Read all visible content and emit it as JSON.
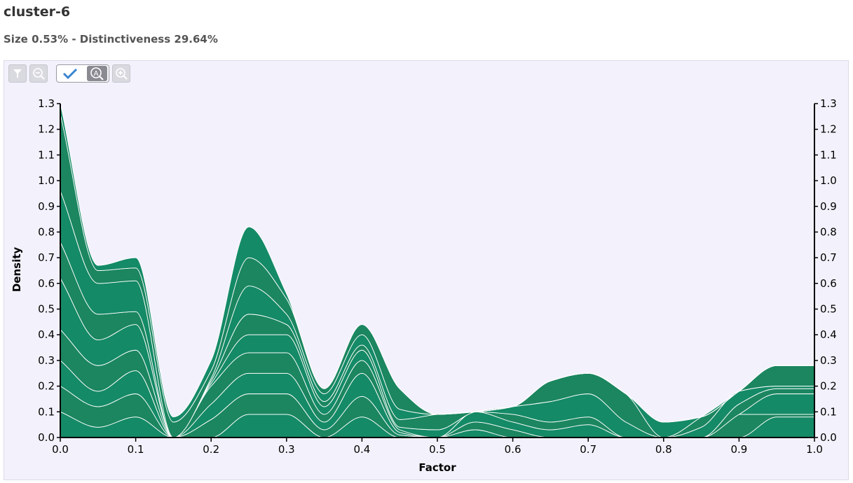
{
  "header": {
    "title": "cluster-6",
    "subtitle": "Size 0.53% - Distinctiveness 29.64%"
  },
  "toolbar": {
    "buttons": [
      "filter-icon",
      "zoom-out-icon",
      "check-icon",
      "auto-zoom-icon",
      "zoom-in-icon"
    ]
  },
  "colors": {
    "fill_dark": "#1b8660",
    "fill_light": "#148a66",
    "stroke": "#ffffff",
    "panel_bg": "#f3f2fc"
  },
  "chart_data": {
    "type": "area",
    "stacked": true,
    "xlabel": "Factor",
    "ylabel": "Density",
    "xlim": [
      0,
      1
    ],
    "ylim": [
      0,
      1.3
    ],
    "x_ticks": [
      "0.0",
      "0.1",
      "0.2",
      "0.3",
      "0.4",
      "0.5",
      "0.6",
      "0.7",
      "0.8",
      "0.9",
      "1.0"
    ],
    "y_ticks": [
      "0.0",
      "0.1",
      "0.2",
      "0.3",
      "0.4",
      "0.5",
      "0.6",
      "0.7",
      "0.8",
      "0.9",
      "1.0",
      "1.1",
      "1.2",
      "1.3"
    ],
    "x": [
      0.0,
      0.05,
      0.1,
      0.15,
      0.2,
      0.25,
      0.3,
      0.35,
      0.4,
      0.45,
      0.5,
      0.55,
      0.6,
      0.65,
      0.7,
      0.75,
      0.8,
      0.85,
      0.9,
      0.95,
      1.0
    ],
    "series": [
      {
        "values": [
          0.1,
          0.04,
          0.08,
          0.0,
          0.0,
          0.09,
          0.09,
          0.0,
          0.08,
          0.0,
          0.0,
          0.03,
          0.0,
          0.0,
          0.0,
          0.0,
          0.0,
          0.0,
          0.0,
          0.08,
          0.08
        ]
      },
      {
        "values": [
          0.1,
          0.08,
          0.09,
          0.0,
          0.07,
          0.08,
          0.08,
          0.03,
          0.08,
          0.01,
          0.0,
          0.03,
          0.03,
          0.0,
          0.0,
          0.0,
          0.0,
          0.0,
          0.09,
          0.01,
          0.01
        ]
      },
      {
        "values": [
          0.1,
          0.06,
          0.09,
          0.0,
          0.06,
          0.08,
          0.08,
          0.03,
          0.09,
          0.01,
          0.0,
          0.04,
          0.03,
          0.03,
          0.05,
          0.0,
          0.0,
          0.0,
          0.0,
          0.08,
          0.08
        ]
      },
      {
        "values": [
          0.12,
          0.1,
          0.08,
          0.0,
          0.07,
          0.08,
          0.08,
          0.03,
          0.05,
          0.01,
          0.0,
          0.0,
          0.03,
          0.03,
          0.03,
          0.0,
          0.0,
          0.0,
          0.04,
          0.02,
          0.02
        ]
      },
      {
        "values": [
          0.2,
          0.1,
          0.1,
          0.0,
          0.01,
          0.07,
          0.07,
          0.03,
          0.04,
          0.01,
          0.03,
          0.0,
          0.03,
          0.08,
          0.09,
          0.06,
          0.0,
          0.04,
          0.05,
          0.01,
          0.01
        ]
      },
      {
        "values": [
          0.14,
          0.1,
          0.05,
          0.0,
          0.01,
          0.08,
          0.04,
          0.02,
          0.02,
          0.03,
          0.06,
          0.0,
          0.0,
          0.08,
          0.08,
          0.11,
          0.0,
          0.04,
          0.0,
          0.08,
          0.08
        ]
      },
      {
        "values": [
          0.2,
          0.12,
          0.12,
          0.0,
          0.01,
          0.11,
          0.04,
          0.03,
          0.04,
          0.04,
          0.0,
          0.0,
          0.0,
          0.0,
          0.0,
          0.0,
          0.06,
          0.0,
          0.0,
          0.0,
          0.0
        ]
      },
      {
        "values": [
          0.3,
          0.05,
          0.05,
          0.06,
          0.03,
          0.11,
          0.06,
          0.02,
          0.04,
          0.08,
          0.0,
          0.0,
          0.0,
          0.0,
          0.0,
          0.0,
          0.0,
          0.0,
          0.0,
          0.0,
          0.0
        ]
      },
      {
        "values": [
          0.04,
          0.02,
          0.04,
          0.02,
          0.04,
          0.12,
          0.02,
          0.0,
          0.0,
          0.0,
          0.0,
          0.0,
          0.0,
          0.0,
          0.0,
          0.0,
          0.0,
          0.0,
          0.0,
          0.0,
          0.0
        ]
      }
    ]
  }
}
